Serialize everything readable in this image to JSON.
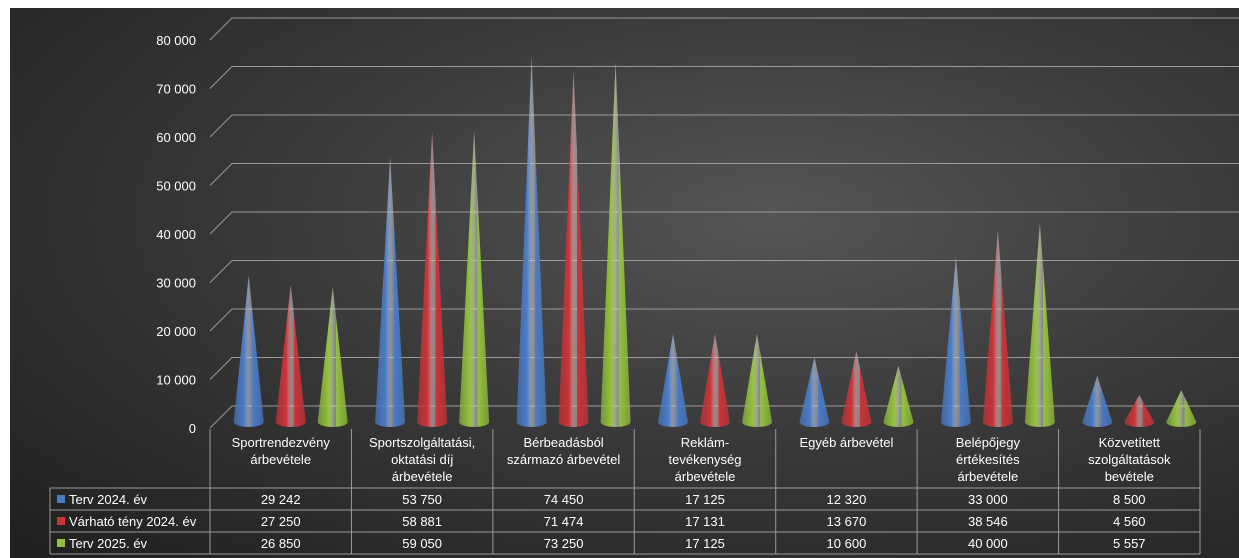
{
  "chart_data": {
    "type": "bar",
    "shape": "cone",
    "categories": [
      [
        "Sportrendezvény",
        "árbevétele"
      ],
      [
        "Sportszolgáltatási,",
        "oktatási díj",
        "árbevétele"
      ],
      [
        "Bérbeadásból",
        "származó árbevétel"
      ],
      [
        "Reklám-",
        "tevékenység",
        "árbevétele"
      ],
      [
        "Egyéb árbevétel"
      ],
      [
        "Belépőjegy",
        "értékesítés",
        "árbevétele"
      ],
      [
        "Közvetített",
        "szolgáltatások",
        "bevétele"
      ]
    ],
    "series": [
      {
        "name": "Terv 2024. év",
        "color": "#4a7cc9",
        "values": [
          29242,
          53750,
          74450,
          17125,
          12320,
          33000,
          8500
        ],
        "labels": [
          "29 242",
          "53 750",
          "74 450",
          "17 125",
          "12 320",
          "33 000",
          "8 500"
        ]
      },
      {
        "name": "Várható tény 2024. év",
        "color": "#cc3338",
        "values": [
          27250,
          58881,
          71474,
          17131,
          13670,
          38546,
          4560
        ],
        "labels": [
          "27 250",
          "58 881",
          "71 474",
          "17 131",
          "13 670",
          "38 546",
          "4 560"
        ]
      },
      {
        "name": "Terv 2025. év",
        "color": "#93c23c",
        "values": [
          26850,
          59050,
          73250,
          17125,
          10600,
          40000,
          5557
        ],
        "labels": [
          "26 850",
          "59 050",
          "73 250",
          "17 125",
          "10 600",
          "40 000",
          "5 557"
        ]
      }
    ],
    "ylim": [
      0,
      80000
    ],
    "yticks": [
      0,
      10000,
      20000,
      30000,
      40000,
      50000,
      60000,
      70000,
      80000
    ],
    "ytick_labels": [
      "0",
      "10 000",
      "20 000",
      "30 000",
      "40 000",
      "50 000",
      "60 000",
      "70 000",
      "80 000"
    ],
    "grid": true,
    "legend": "data-table"
  }
}
